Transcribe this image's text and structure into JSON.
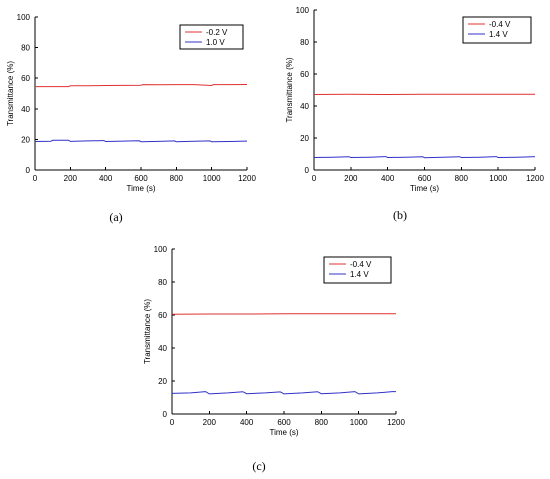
{
  "chart_data": [
    {
      "panel": "(a)",
      "type": "line",
      "xlabel": "Time (s)",
      "ylabel": "Transmittance (%)",
      "xlim": [
        0,
        1200
      ],
      "ylim": [
        0,
        100
      ],
      "xticks": [
        0,
        200,
        400,
        600,
        800,
        1000,
        1200
      ],
      "yticks": [
        0,
        20,
        40,
        60,
        80,
        100
      ],
      "legend_position": "top-right",
      "series": [
        {
          "name": "-0.2 V",
          "color": "#e03030",
          "x": [
            0,
            100,
            190,
            200,
            300,
            400,
            500,
            600,
            610,
            700,
            800,
            900,
            1000,
            1010,
            1100,
            1200
          ],
          "y": [
            54.5,
            54.5,
            54.5,
            55.0,
            55.0,
            55.2,
            55.3,
            55.4,
            55.8,
            55.7,
            55.8,
            55.8,
            55.2,
            55.8,
            55.8,
            55.9
          ]
        },
        {
          "name": "1.0 V",
          "color": "#3030c8",
          "x": [
            0,
            90,
            100,
            190,
            200,
            300,
            390,
            400,
            500,
            590,
            600,
            700,
            790,
            800,
            900,
            990,
            1000,
            1100,
            1190,
            1200
          ],
          "y": [
            18.6,
            18.8,
            19.4,
            19.5,
            18.7,
            19.0,
            19.2,
            18.6,
            18.9,
            19.1,
            18.5,
            18.7,
            19.0,
            18.5,
            18.8,
            19.0,
            18.4,
            18.6,
            18.9,
            18.9
          ]
        }
      ]
    },
    {
      "panel": "(b)",
      "type": "line",
      "xlabel": "Time (s)",
      "ylabel": "Transmittance (%)",
      "xlim": [
        0,
        1200
      ],
      "ylim": [
        0,
        100
      ],
      "xticks": [
        0,
        200,
        400,
        600,
        800,
        1000,
        1200
      ],
      "yticks": [
        0,
        20,
        40,
        60,
        80,
        100
      ],
      "legend_position": "top-right",
      "series": [
        {
          "name": "-0.4 V",
          "color": "#e03030",
          "x": [
            0,
            200,
            400,
            600,
            800,
            1000,
            1200
          ],
          "y": [
            47.2,
            47.3,
            47.2,
            47.3,
            47.3,
            47.3,
            47.4
          ]
        },
        {
          "name": "1.4 V",
          "color": "#3030c8",
          "x": [
            0,
            100,
            190,
            200,
            300,
            390,
            400,
            500,
            590,
            600,
            700,
            790,
            800,
            900,
            990,
            1000,
            1100,
            1190,
            1200
          ],
          "y": [
            7.8,
            8.0,
            8.3,
            7.8,
            8.0,
            8.4,
            7.8,
            8.0,
            8.3,
            7.7,
            8.0,
            8.3,
            7.8,
            8.0,
            8.4,
            7.8,
            8.0,
            8.3,
            8.3
          ]
        }
      ]
    },
    {
      "panel": "(c)",
      "type": "line",
      "xlabel": "Time (s)",
      "ylabel": "Transmittance (%)",
      "xlim": [
        0,
        1200
      ],
      "ylim": [
        0,
        100
      ],
      "xticks": [
        0,
        200,
        400,
        600,
        800,
        1000,
        1200
      ],
      "yticks": [
        0,
        20,
        40,
        60,
        80,
        100
      ],
      "legend_position": "top-right",
      "series": [
        {
          "name": "-0.4 V",
          "color": "#e03030",
          "x": [
            0,
            200,
            400,
            600,
            800,
            1000,
            1200
          ],
          "y": [
            60.5,
            60.6,
            60.6,
            60.7,
            60.7,
            60.8,
            60.8
          ]
        },
        {
          "name": "1.4 V",
          "color": "#3030c8",
          "x": [
            0,
            100,
            180,
            200,
            300,
            380,
            400,
            500,
            580,
            600,
            700,
            780,
            800,
            900,
            980,
            1000,
            1100,
            1180,
            1200
          ],
          "y": [
            12.5,
            12.8,
            13.6,
            12.2,
            12.8,
            13.5,
            12.3,
            12.8,
            13.4,
            12.2,
            12.8,
            13.5,
            12.3,
            12.8,
            13.6,
            12.2,
            12.8,
            13.6,
            13.6
          ]
        }
      ]
    }
  ]
}
